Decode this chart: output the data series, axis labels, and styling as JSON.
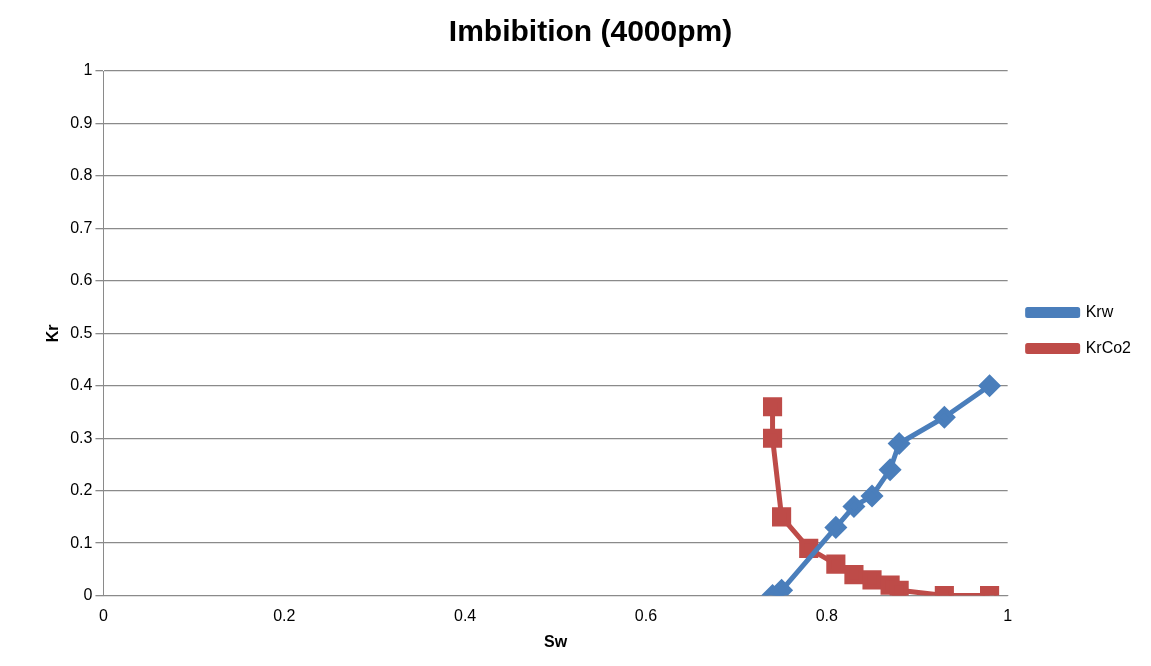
{
  "chart_data": {
    "type": "line",
    "title": "Imbibition (4000pm)",
    "xlabel": "Sw",
    "ylabel": "Kr",
    "xlim": [
      0,
      1
    ],
    "xticks": [
      0,
      0.2,
      0.4,
      0.6,
      0.8,
      1
    ],
    "ylim": [
      0,
      1
    ],
    "yticks": [
      0,
      0.1,
      0.2,
      0.3,
      0.4,
      0.5,
      0.6,
      0.7,
      0.8,
      0.9,
      1
    ],
    "grid": "y",
    "legend": "right",
    "series": [
      {
        "name": "Krw",
        "color": "#4a7ebb",
        "marker": "diamond",
        "x": [
          0.74,
          0.75,
          0.81,
          0.83,
          0.85,
          0.87,
          0.88,
          0.93,
          0.98
        ],
        "values": [
          0,
          0.01,
          0.13,
          0.17,
          0.19,
          0.24,
          0.29,
          0.34,
          0.4
        ]
      },
      {
        "name": "KrCo2",
        "color": "#be4b48",
        "marker": "square",
        "x": [
          0.74,
          0.74,
          0.75,
          0.78,
          0.81,
          0.83,
          0.85,
          0.87,
          0.88,
          0.93,
          0.98
        ],
        "values": [
          0.36,
          0.3,
          0.15,
          0.09,
          0.06,
          0.04,
          0.03,
          0.02,
          0.01,
          0,
          0
        ]
      }
    ]
  }
}
